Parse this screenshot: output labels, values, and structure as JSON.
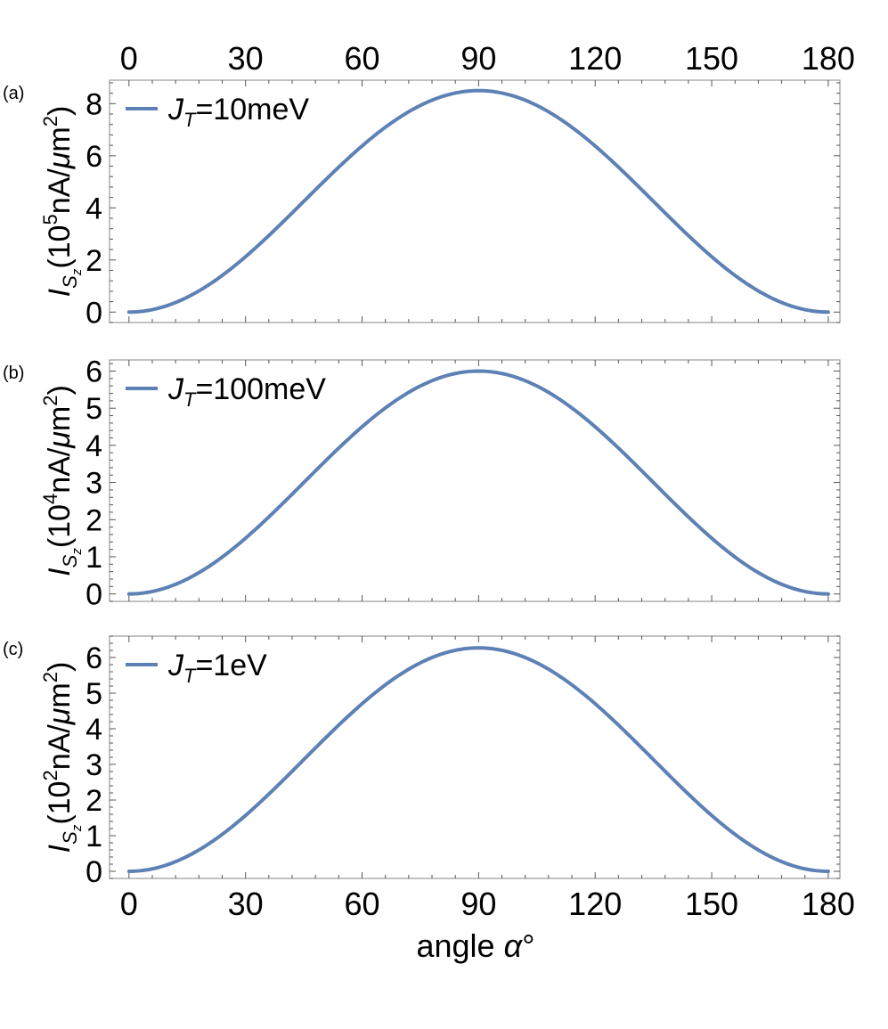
{
  "x_axis": {
    "label": "angle α°",
    "ticks": [
      0,
      30,
      60,
      90,
      120,
      150,
      180
    ]
  },
  "colors": {
    "series": "#5e81b5",
    "frame": "#9a9a9a"
  },
  "chart_data": [
    {
      "panel": "(a)",
      "type": "line",
      "ylabel": "I_Sz(10^5 nA/μm^2)",
      "yticks": [
        0,
        2,
        4,
        6,
        8
      ],
      "ylim": [
        -0.4,
        8.9
      ],
      "xlim": [
        -5,
        183
      ],
      "legend_location": "top-left",
      "series": [
        {
          "name": "J_T=10meV",
          "x": [
            0,
            15,
            30,
            45,
            60,
            75,
            90,
            105,
            120,
            135,
            150,
            165,
            180
          ],
          "values": [
            0,
            0.57,
            2.12,
            4.25,
            6.38,
            7.93,
            8.5,
            7.93,
            6.38,
            4.25,
            2.12,
            0.57,
            0
          ]
        }
      ]
    },
    {
      "panel": "(b)",
      "type": "line",
      "ylabel": "I_Sz(10^4 nA/μm^2)",
      "yticks": [
        0,
        1,
        2,
        3,
        4,
        5,
        6
      ],
      "ylim": [
        -0.2,
        6.3
      ],
      "xlim": [
        -5,
        183
      ],
      "legend_location": "top-left",
      "series": [
        {
          "name": "J_T=100meV",
          "x": [
            0,
            15,
            30,
            45,
            60,
            75,
            90,
            105,
            120,
            135,
            150,
            165,
            180
          ],
          "values": [
            0,
            0.4,
            1.5,
            3.0,
            4.5,
            5.6,
            6.0,
            5.6,
            4.5,
            3.0,
            1.5,
            0.4,
            0
          ]
        }
      ]
    },
    {
      "panel": "(c)",
      "type": "line",
      "ylabel": "I_Sz(10^2 nA/μm^2)",
      "yticks": [
        0,
        1,
        2,
        3,
        4,
        5,
        6
      ],
      "ylim": [
        -0.2,
        6.6
      ],
      "xlim": [
        -5,
        183
      ],
      "legend_location": "top-left",
      "series": [
        {
          "name": "J_T=1eV",
          "x": [
            0,
            15,
            30,
            45,
            60,
            75,
            90,
            105,
            120,
            135,
            150,
            165,
            180
          ],
          "values": [
            0,
            0.42,
            1.57,
            3.13,
            4.7,
            5.85,
            6.27,
            5.85,
            4.7,
            3.13,
            1.57,
            0.42,
            0
          ]
        }
      ]
    }
  ]
}
